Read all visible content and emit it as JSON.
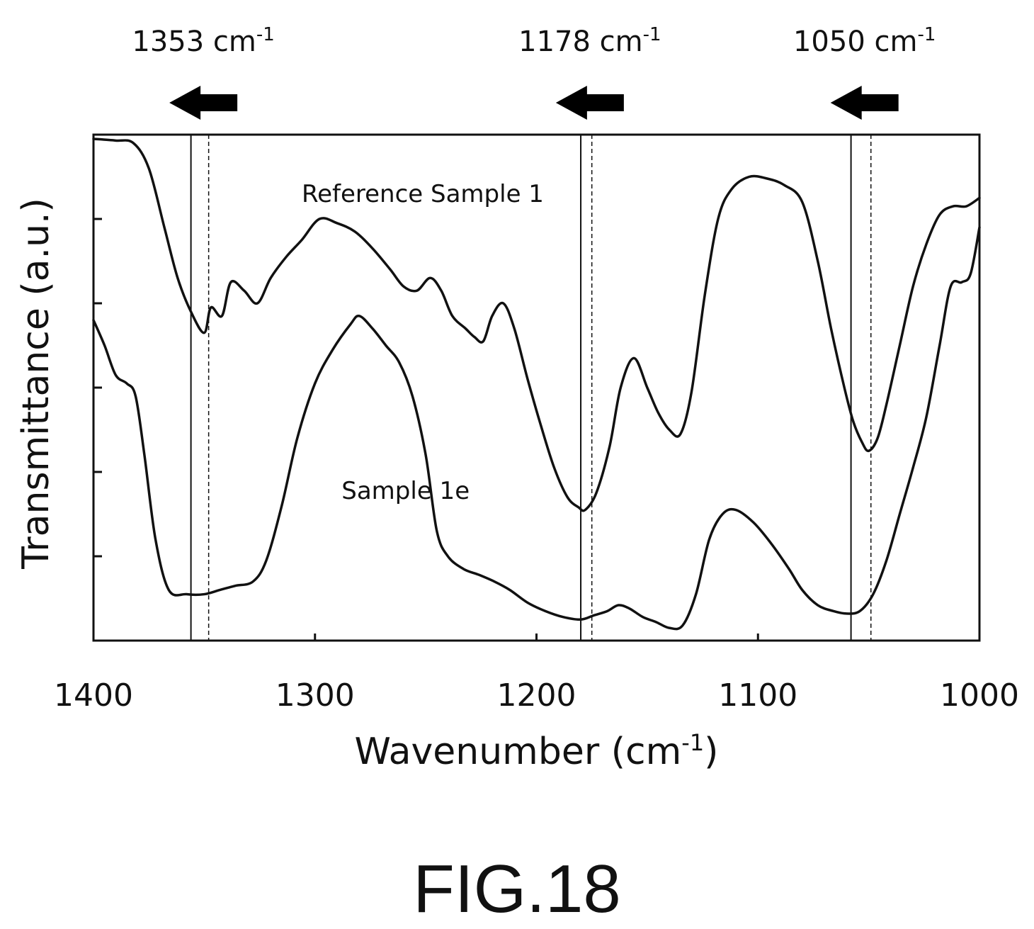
{
  "caption": "FIG.18",
  "chart_data": {
    "type": "line",
    "xlabel": "Wavenumber (cm",
    "xlabel_sup": "-1",
    "xlabel_close": ")",
    "ylabel": "Transmittance (a.u.)",
    "xlim": [
      1400,
      1000
    ],
    "x_reversed": true,
    "ylim": [
      0,
      6
    ],
    "x_ticks": [
      "1400",
      "1300",
      "1200",
      "1100",
      "1000"
    ],
    "y_tick_count": 5,
    "grid": false,
    "series": [
      {
        "name": "Reference Sample 1",
        "label_at": [
          1306,
          5.2
        ],
        "points": [
          [
            1400,
            5.95
          ],
          [
            1390,
            5.93
          ],
          [
            1382,
            5.9
          ],
          [
            1375,
            5.6
          ],
          [
            1368,
            4.9
          ],
          [
            1362,
            4.3
          ],
          [
            1356,
            3.9
          ],
          [
            1350,
            3.65
          ],
          [
            1347,
            3.95
          ],
          [
            1342,
            3.85
          ],
          [
            1338,
            4.25
          ],
          [
            1332,
            4.15
          ],
          [
            1326,
            4.0
          ],
          [
            1320,
            4.3
          ],
          [
            1313,
            4.55
          ],
          [
            1306,
            4.75
          ],
          [
            1298,
            5.0
          ],
          [
            1290,
            4.95
          ],
          [
            1282,
            4.85
          ],
          [
            1274,
            4.65
          ],
          [
            1266,
            4.4
          ],
          [
            1260,
            4.2
          ],
          [
            1254,
            4.15
          ],
          [
            1248,
            4.3
          ],
          [
            1243,
            4.15
          ],
          [
            1238,
            3.85
          ],
          [
            1232,
            3.7
          ],
          [
            1228,
            3.6
          ],
          [
            1224,
            3.55
          ],
          [
            1220,
            3.85
          ],
          [
            1215,
            4.0
          ],
          [
            1210,
            3.7
          ],
          [
            1204,
            3.1
          ],
          [
            1198,
            2.55
          ],
          [
            1192,
            2.05
          ],
          [
            1186,
            1.7
          ],
          [
            1181,
            1.58
          ],
          [
            1178,
            1.55
          ],
          [
            1173,
            1.75
          ],
          [
            1167,
            2.3
          ],
          [
            1162,
            3.0
          ],
          [
            1156,
            3.35
          ],
          [
            1150,
            3.0
          ],
          [
            1145,
            2.7
          ],
          [
            1140,
            2.5
          ],
          [
            1135,
            2.45
          ],
          [
            1130,
            2.95
          ],
          [
            1124,
            4.1
          ],
          [
            1118,
            5.0
          ],
          [
            1112,
            5.35
          ],
          [
            1104,
            5.5
          ],
          [
            1096,
            5.48
          ],
          [
            1088,
            5.4
          ],
          [
            1080,
            5.2
          ],
          [
            1073,
            4.5
          ],
          [
            1067,
            3.7
          ],
          [
            1061,
            3.0
          ],
          [
            1057,
            2.6
          ],
          [
            1053,
            2.35
          ],
          [
            1050,
            2.25
          ],
          [
            1046,
            2.4
          ],
          [
            1042,
            2.8
          ],
          [
            1036,
            3.5
          ],
          [
            1030,
            4.2
          ],
          [
            1024,
            4.7
          ],
          [
            1018,
            5.05
          ],
          [
            1012,
            5.15
          ],
          [
            1006,
            5.15
          ],
          [
            1000,
            5.25
          ]
        ]
      },
      {
        "name": "Sample 1e",
        "label_at": [
          1288,
          1.68
        ],
        "points": [
          [
            1400,
            3.8
          ],
          [
            1395,
            3.5
          ],
          [
            1390,
            3.15
          ],
          [
            1385,
            3.05
          ],
          [
            1381,
            2.9
          ],
          [
            1377,
            2.2
          ],
          [
            1372,
            1.2
          ],
          [
            1366,
            0.6
          ],
          [
            1358,
            0.55
          ],
          [
            1350,
            0.55
          ],
          [
            1343,
            0.6
          ],
          [
            1336,
            0.65
          ],
          [
            1328,
            0.7
          ],
          [
            1322,
            0.95
          ],
          [
            1315,
            1.6
          ],
          [
            1308,
            2.4
          ],
          [
            1300,
            3.05
          ],
          [
            1292,
            3.45
          ],
          [
            1284,
            3.75
          ],
          [
            1280,
            3.85
          ],
          [
            1274,
            3.7
          ],
          [
            1268,
            3.5
          ],
          [
            1262,
            3.3
          ],
          [
            1256,
            2.9
          ],
          [
            1250,
            2.2
          ],
          [
            1245,
            1.3
          ],
          [
            1240,
            1.0
          ],
          [
            1233,
            0.85
          ],
          [
            1226,
            0.78
          ],
          [
            1219,
            0.7
          ],
          [
            1212,
            0.6
          ],
          [
            1204,
            0.45
          ],
          [
            1196,
            0.35
          ],
          [
            1188,
            0.28
          ],
          [
            1180,
            0.25
          ],
          [
            1174,
            0.3
          ],
          [
            1168,
            0.35
          ],
          [
            1163,
            0.42
          ],
          [
            1158,
            0.38
          ],
          [
            1152,
            0.28
          ],
          [
            1146,
            0.22
          ],
          [
            1140,
            0.15
          ],
          [
            1134,
            0.18
          ],
          [
            1128,
            0.55
          ],
          [
            1122,
            1.2
          ],
          [
            1116,
            1.5
          ],
          [
            1110,
            1.55
          ],
          [
            1102,
            1.4
          ],
          [
            1094,
            1.15
          ],
          [
            1086,
            0.85
          ],
          [
            1080,
            0.6
          ],
          [
            1073,
            0.42
          ],
          [
            1066,
            0.35
          ],
          [
            1060,
            0.32
          ],
          [
            1054,
            0.35
          ],
          [
            1048,
            0.55
          ],
          [
            1042,
            0.95
          ],
          [
            1036,
            1.5
          ],
          [
            1030,
            2.05
          ],
          [
            1024,
            2.65
          ],
          [
            1018,
            3.5
          ],
          [
            1013,
            4.2
          ],
          [
            1008,
            4.25
          ],
          [
            1004,
            4.35
          ],
          [
            1000,
            4.9
          ]
        ]
      }
    ],
    "reference_lines": [
      {
        "x": 1356,
        "style": "solid"
      },
      {
        "x": 1348,
        "style": "dashed"
      },
      {
        "x": 1180,
        "style": "solid"
      },
      {
        "x": 1175,
        "style": "dashed"
      },
      {
        "x": 1058,
        "style": "solid"
      },
      {
        "x": 1049,
        "style": "dashed"
      }
    ],
    "peak_annotations": [
      {
        "label": "1353 cm",
        "sup": "-1",
        "arrow": "left"
      },
      {
        "label": "1178 cm",
        "sup": "-1",
        "arrow": "left"
      },
      {
        "label": "1050 cm",
        "sup": "-1",
        "arrow": "left"
      }
    ]
  }
}
